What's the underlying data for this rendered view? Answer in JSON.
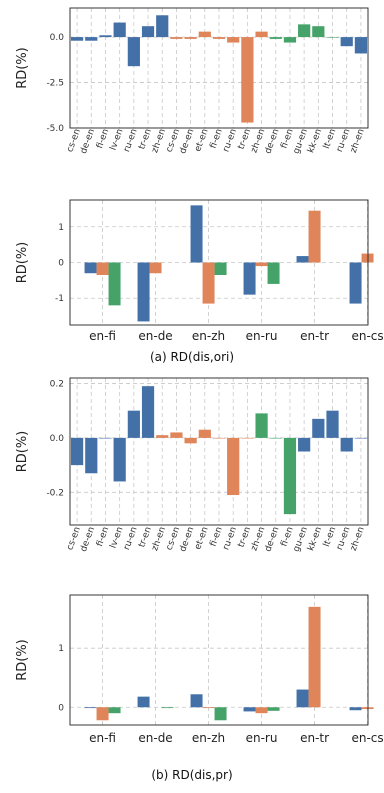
{
  "figure": {
    "caption_a": "(a) RD(dis,ori)",
    "caption_b": "(b) RD(dis,pr)"
  },
  "colors": {
    "blue": "#4470a8",
    "orange": "#e08459",
    "green": "#45a36a"
  },
  "chart_data": [
    {
      "type": "bar",
      "id": "a_top",
      "ylabel": "RD(%)",
      "ylim": [
        -5.0,
        1.6
      ],
      "yticks": [
        0.0,
        -2.5,
        -5.0
      ],
      "ytick_labels": [
        "0.0",
        "-2.5",
        "-5.0"
      ],
      "grid": true,
      "categories": [
        "cs-en",
        "de-en",
        "fi-en",
        "lv-en",
        "ru-en",
        "tr-en",
        "zh-en",
        "cs-en",
        "de-en",
        "et-en",
        "fi-en",
        "ru-en",
        "tr-en",
        "zh-en",
        "de-en",
        "fi-en",
        "gu-en",
        "kk-en",
        "lt-en",
        "ru-en",
        "zh-en"
      ],
      "values": [
        -0.2,
        -0.2,
        0.1,
        0.8,
        -1.6,
        0.6,
        1.2,
        -0.1,
        -0.1,
        0.3,
        -0.1,
        -0.3,
        -4.7,
        0.3,
        -0.1,
        -0.3,
        0.7,
        0.6,
        0.0,
        -0.5,
        -0.9
      ],
      "bar_colors": [
        "blue",
        "blue",
        "blue",
        "blue",
        "blue",
        "blue",
        "blue",
        "orange",
        "orange",
        "orange",
        "orange",
        "orange",
        "orange",
        "orange",
        "green",
        "green",
        "green",
        "green",
        "green",
        "blue",
        "blue"
      ]
    },
    {
      "type": "bar",
      "id": "a_bottom",
      "ylabel": "RD(%)",
      "ylim": [
        -1.75,
        1.75
      ],
      "yticks": [
        1,
        0,
        -1
      ],
      "ytick_labels": [
        "1",
        "0",
        "-1"
      ],
      "grid": true,
      "categories": [
        "en-fi",
        "en-de",
        "en-zh",
        "en-ru",
        "en-tr",
        "en-cs"
      ],
      "series": [
        {
          "values": [
            -0.3,
            -1.65,
            1.6,
            -0.9,
            0.18,
            -1.15
          ],
          "color_key": "blue"
        },
        {
          "values": [
            -0.35,
            -0.3,
            -1.15,
            -0.1,
            1.45,
            0.25
          ],
          "color_key": "orange"
        },
        {
          "values": [
            -1.2,
            null,
            -0.35,
            -0.6,
            null,
            null
          ],
          "color_key": "green"
        }
      ]
    },
    {
      "type": "bar",
      "id": "b_top",
      "ylabel": "RD(%)",
      "ylim": [
        -0.32,
        0.22
      ],
      "yticks": [
        0.2,
        0.0,
        -0.2
      ],
      "ytick_labels": [
        "0.2",
        "0.0",
        "-0.2"
      ],
      "grid": true,
      "categories": [
        "cs-en",
        "de-en",
        "fi-en",
        "lv-en",
        "ru-en",
        "tr-en",
        "zh-en",
        "cs-en",
        "de-en",
        "et-en",
        "fi-en",
        "ru-en",
        "tr-en",
        "zh-en",
        "de-en",
        "fi-en",
        "gu-en",
        "kk-en",
        "lt-en",
        "ru-en",
        "zh-en"
      ],
      "values": [
        -0.1,
        -0.13,
        0.0,
        -0.16,
        0.1,
        0.19,
        0.01,
        0.02,
        -0.02,
        0.03,
        0.0,
        -0.21,
        0.0,
        0.09,
        0.0,
        -0.28,
        -0.05,
        0.07,
        0.1,
        -0.05,
        0.0
      ],
      "bar_colors": [
        "blue",
        "blue",
        "blue",
        "blue",
        "blue",
        "blue",
        "orange",
        "orange",
        "orange",
        "orange",
        "orange",
        "orange",
        "orange",
        "green",
        "green",
        "green",
        "blue",
        "blue",
        "blue",
        "blue",
        "blue"
      ]
    },
    {
      "type": "bar",
      "id": "b_bottom",
      "ylabel": "RD(%)",
      "ylim": [
        -0.3,
        1.9
      ],
      "yticks": [
        1,
        0
      ],
      "ytick_labels": [
        "1",
        "0"
      ],
      "grid": true,
      "categories": [
        "en-fi",
        "en-de",
        "en-zh",
        "en-ru",
        "en-tr",
        "en-cs"
      ],
      "series": [
        {
          "values": [
            0.0,
            0.18,
            0.22,
            -0.07,
            0.3,
            -0.05
          ],
          "color_key": "blue"
        },
        {
          "values": [
            -0.22,
            null,
            0.0,
            -0.1,
            1.7,
            -0.03
          ],
          "color_key": "orange"
        },
        {
          "values": [
            -0.1,
            0.0,
            -0.22,
            -0.06,
            null,
            null
          ],
          "color_key": "green"
        }
      ]
    }
  ]
}
